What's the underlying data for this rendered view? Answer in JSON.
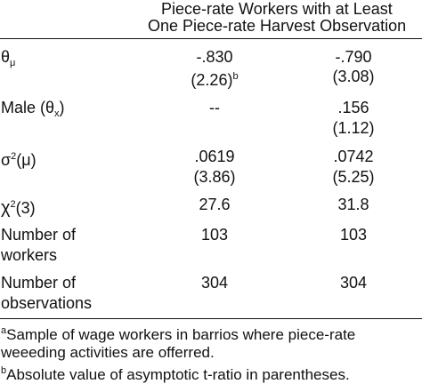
{
  "header": {
    "line1": "Piece-rate Workers with at Least",
    "line2": "One Piece-rate Harvest Observation"
  },
  "rows": [
    {
      "label_main": "θ",
      "label_sub": "μ",
      "col1": "-.830",
      "col1_se": "(2.26)",
      "col1_se_mark": "b",
      "col2": "-.790",
      "col2_se": "(3.08)"
    },
    {
      "label_main": "Male (θ",
      "label_sub": "x",
      "label_tail": ")",
      "col1": "--",
      "col2": ".156",
      "col2_se": "(1.12)"
    },
    {
      "label_main": "σ",
      "label_sup": "2",
      "label_tail": "(μ)",
      "col1": ".0619",
      "col1_se": "(3.86)",
      "col2": ".0742",
      "col2_se": "(5.25)"
    },
    {
      "label_main": "χ",
      "label_sup": "2",
      "label_tail": "(3)",
      "col1": "27.6",
      "col2": "31.8"
    },
    {
      "label_line1": "Number of",
      "label_line2": "workers",
      "col1": "103",
      "col2": "103"
    },
    {
      "label_line1": "Number of",
      "label_line2": "observations",
      "col1": "304",
      "col2": "304"
    }
  ],
  "notes": [
    {
      "mark": "a",
      "text": "Sample of wage workers in barrios where piece-rate",
      "text2": "weeeding activities are offerred."
    },
    {
      "mark": "b",
      "text": "Absolute value of asymptotic t-ratio in parentheses."
    }
  ]
}
